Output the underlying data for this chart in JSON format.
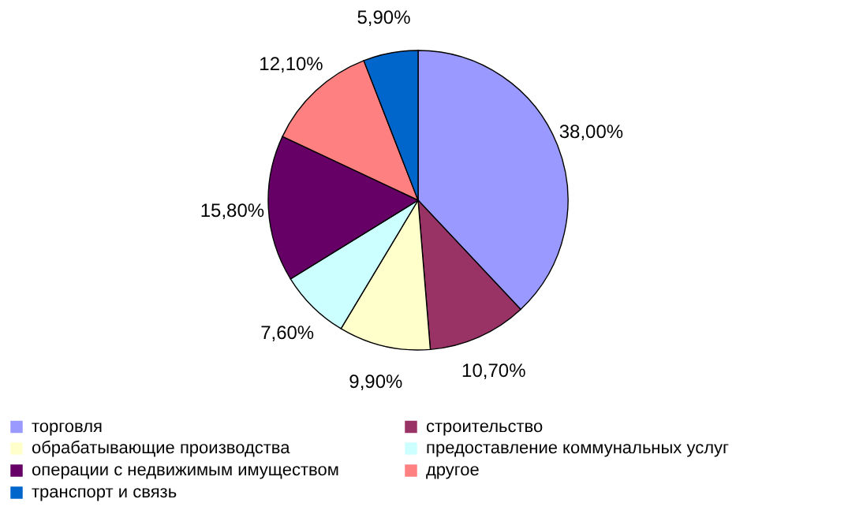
{
  "chart_data": {
    "type": "pie",
    "categories": [
      "торговля",
      "строительство",
      "обрабатывающие производства",
      "предоставление коммунальных услуг",
      "операции с недвижимым имуществом",
      "другое",
      "транспорт и связь"
    ],
    "values": [
      38.0,
      10.7,
      9.9,
      7.6,
      15.8,
      12.1,
      5.9
    ],
    "value_labels": [
      "38,00%",
      "10,70%",
      "9,90%",
      "7,60%",
      "15,80%",
      "12,10%",
      "5,90%"
    ],
    "colors": [
      "#9999ff",
      "#993366",
      "#ffffcc",
      "#ccffff",
      "#660066",
      "#ff8080",
      "#0066cc"
    ],
    "legend": "bottom"
  }
}
